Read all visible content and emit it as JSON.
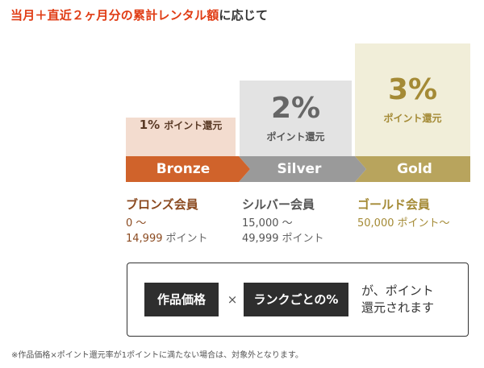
{
  "headline": {
    "accent": "当月＋直近２ヶ月分の累計レンタル額",
    "rest": "に応じて"
  },
  "tiers": [
    {
      "key": "bronze",
      "rate": "1%",
      "rate_label": "ポイント還元",
      "band_label": "Bronze",
      "band_color": "#d0632b",
      "member_name": "ブロンズ会員",
      "range_from": "0 ～",
      "range_to": "14,999",
      "range_unit": "ポイント"
    },
    {
      "key": "silver",
      "rate": "2%",
      "rate_label": "ポイント還元",
      "band_label": "Silver",
      "band_color": "#9a9a9a",
      "member_name": "シルバー会員",
      "range_from": "15,000 ～",
      "range_to": "49,999",
      "range_unit": "ポイント"
    },
    {
      "key": "gold",
      "rate": "3%",
      "rate_label": "ポイント還元",
      "band_label": "Gold",
      "band_color": "#b8a45d",
      "member_name": "ゴールド会員",
      "range_from": "50,000",
      "range_unit": "ポイント～"
    }
  ],
  "formula": {
    "term1": "作品価格",
    "operator": "×",
    "term2": "ランクごとの%",
    "result_line1": "が、ポイント",
    "result_line2": "還元されます"
  },
  "footnote": "※作品価格×ポイント還元率が1ポイントに満たない場合は、対象外となります。"
}
